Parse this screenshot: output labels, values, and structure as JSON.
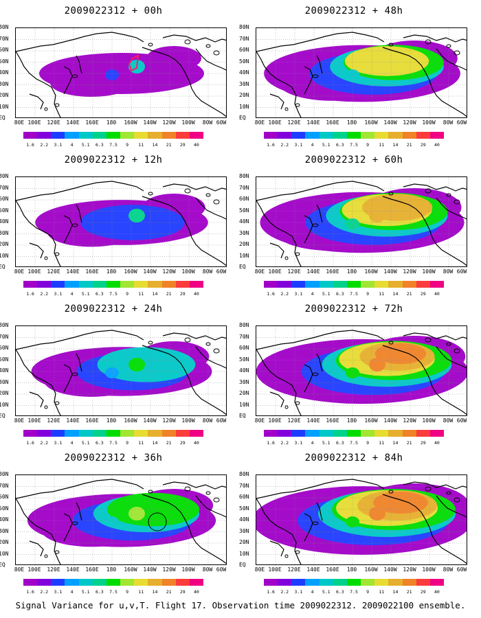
{
  "caption": "Signal Variance for u,v,T. Flight 17. Observation time 2009022312. 2009022100 ensemble.",
  "lat_labels": [
    "80N",
    "70N",
    "60N",
    "50N",
    "40N",
    "30N",
    "20N",
    "10N",
    "EQ"
  ],
  "lon_labels": [
    "80E",
    "100E",
    "120E",
    "140E",
    "160E",
    "180",
    "160W",
    "140W",
    "120W",
    "100W",
    "80W",
    "60W"
  ],
  "colorbar": {
    "labels": [
      "1.6",
      "2.2",
      "3.1",
      "4",
      "5.1",
      "6.3",
      "7.5",
      "9",
      "11",
      "14",
      "21",
      "29",
      "40"
    ],
    "colors": [
      "#a000c8",
      "#8200dc",
      "#1e3cff",
      "#00a0ff",
      "#00c8c8",
      "#00d28c",
      "#00dc00",
      "#a0e632",
      "#e6dc32",
      "#e6af2d",
      "#f08228",
      "#fa3c3c",
      "#f00082"
    ]
  },
  "panels": [
    {
      "title": "2009022312 + 00h",
      "forecast_hour": 0
    },
    {
      "title": "2009022312 + 48h",
      "forecast_hour": 48
    },
    {
      "title": "2009022312 + 12h",
      "forecast_hour": 12
    },
    {
      "title": "2009022312 + 60h",
      "forecast_hour": 60
    },
    {
      "title": "2009022312 + 24h",
      "forecast_hour": 24
    },
    {
      "title": "2009022312 + 72h",
      "forecast_hour": 72
    },
    {
      "title": "2009022312 + 36h",
      "forecast_hour": 36
    },
    {
      "title": "2009022312 + 84h",
      "forecast_hour": 84
    }
  ]
}
